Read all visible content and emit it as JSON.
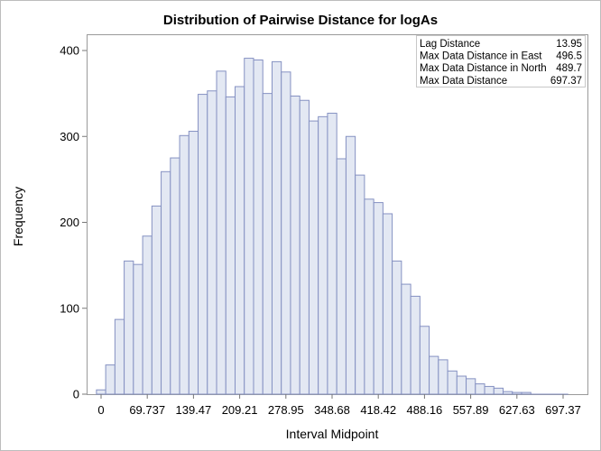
{
  "chart_data": {
    "type": "bar",
    "title": "Distribution of Pairwise Distance for logAs",
    "xlabel": "Interval Midpoint",
    "ylabel": "Frequency",
    "bin_width": 13.95,
    "ylim": [
      0,
      420
    ],
    "yticks": [
      "0",
      "100",
      "200",
      "300",
      "400"
    ],
    "ytick_values": [
      0,
      100,
      200,
      300,
      400
    ],
    "xticks": [
      "0",
      "69.737",
      "139.47",
      "209.21",
      "278.95",
      "348.68",
      "418.42",
      "488.16",
      "557.89",
      "627.63",
      "697.37"
    ],
    "xtick_values": [
      0,
      69.737,
      139.47,
      209.21,
      278.95,
      348.68,
      418.42,
      488.16,
      557.89,
      627.63,
      697.37
    ],
    "values": [
      5,
      34,
      87,
      155,
      151,
      184,
      219,
      259,
      275,
      301,
      306,
      349,
      353,
      376,
      346,
      358,
      391,
      389,
      350,
      387,
      375,
      347,
      342,
      318,
      323,
      327,
      274,
      300,
      255,
      227,
      223,
      210,
      155,
      128,
      114,
      79,
      44,
      40,
      27,
      21,
      18,
      12,
      9,
      7,
      3,
      2,
      2,
      0,
      0,
      0,
      0
    ],
    "grid": false,
    "legend": "none",
    "colors": {
      "bar_fill": "#e3e8f3",
      "bar_stroke": "#8591c2"
    },
    "inset_table": {
      "position": "top-right",
      "rows": [
        {
          "label": "Lag Distance",
          "value": "13.95"
        },
        {
          "label": "Max Data Distance in East",
          "value": "496.5"
        },
        {
          "label": "Max Data Distance in North",
          "value": "489.7"
        },
        {
          "label": "Max Data Distance",
          "value": "697.37"
        }
      ]
    }
  }
}
